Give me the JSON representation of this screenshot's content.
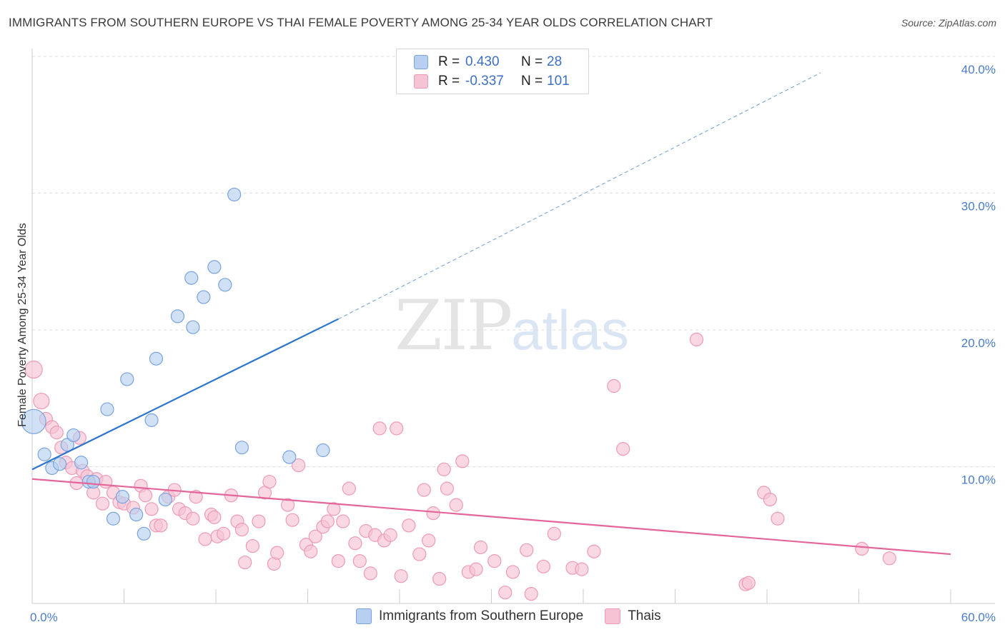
{
  "title": "IMMIGRANTS FROM SOUTHERN EUROPE VS THAI FEMALE POVERTY AMONG 25-34 YEAR OLDS CORRELATION CHART",
  "source": "Source: ZipAtlas.com",
  "watermark": {
    "zip": "ZIP",
    "atlas": "atlas"
  },
  "legend": {
    "series1": {
      "r_label": "R =",
      "r_value": "0.430",
      "n_label": "N =",
      "n_value": "28"
    },
    "series2": {
      "r_label": "R =",
      "r_value": "-0.337",
      "n_label": "N =",
      "n_value": "101"
    }
  },
  "bottom_legend": {
    "series1": "Immigrants from Southern Europe",
    "series2": "Thais"
  },
  "colors": {
    "blue_fill": "#b7cff0",
    "blue_stroke": "#7aa3df",
    "blue_line": "#2b74d0",
    "pink_fill": "#f6c3d4",
    "pink_stroke": "#ee9ab6",
    "pink_line": "#e4659a",
    "tick": "#4a7cc9",
    "grid": "#dddddd"
  },
  "chart_data": {
    "type": "scatter",
    "ylabel": "Female Poverty Among 25-34 Year Olds",
    "xlim": [
      0,
      60
    ],
    "ylim": [
      0,
      40
    ],
    "x_tick_labels": [
      "0.0%",
      "60.0%"
    ],
    "y_ticks": [
      10,
      20,
      30,
      40
    ],
    "y_tick_labels": [
      "10.0%",
      "20.0%",
      "30.0%",
      "40.0%"
    ],
    "grid": true,
    "series": [
      {
        "name": "Immigrants from Southern Europe",
        "color": "blue",
        "points": [
          [
            0.1,
            13.3
          ],
          [
            0.8,
            10.9
          ],
          [
            1.3,
            9.9
          ],
          [
            1.8,
            10.2
          ],
          [
            2.3,
            11.6
          ],
          [
            2.7,
            12.3
          ],
          [
            3.2,
            10.3
          ],
          [
            3.7,
            8.9
          ],
          [
            4.0,
            8.9
          ],
          [
            4.9,
            14.2
          ],
          [
            5.3,
            6.2
          ],
          [
            5.9,
            7.8
          ],
          [
            6.2,
            16.4
          ],
          [
            6.8,
            6.5
          ],
          [
            7.3,
            5.1
          ],
          [
            7.8,
            13.4
          ],
          [
            8.1,
            17.9
          ],
          [
            8.7,
            7.6
          ],
          [
            9.5,
            21.0
          ],
          [
            10.4,
            23.8
          ],
          [
            10.5,
            20.2
          ],
          [
            11.2,
            22.4
          ],
          [
            11.9,
            24.6
          ],
          [
            12.6,
            23.3
          ],
          [
            13.2,
            29.9
          ],
          [
            13.7,
            11.4
          ],
          [
            16.8,
            10.7
          ],
          [
            19.0,
            11.2
          ]
        ],
        "trend": {
          "x0": 0,
          "y0": 9.8,
          "x1": 20,
          "y1": 20.8,
          "dashed_to": {
            "x": 51.5,
            "y": 38.8
          }
        }
      },
      {
        "name": "Thais",
        "color": "pink",
        "points": [
          [
            0.1,
            17.1
          ],
          [
            0.6,
            14.8
          ],
          [
            0.9,
            13.5
          ],
          [
            1.3,
            12.9
          ],
          [
            1.6,
            12.5
          ],
          [
            1.9,
            11.4
          ],
          [
            2.2,
            10.3
          ],
          [
            2.6,
            9.9
          ],
          [
            2.9,
            8.8
          ],
          [
            3.1,
            12.1
          ],
          [
            3.3,
            9.7
          ],
          [
            3.6,
            9.3
          ],
          [
            4.0,
            8.1
          ],
          [
            4.2,
            9.1
          ],
          [
            4.6,
            7.3
          ],
          [
            4.8,
            8.9
          ],
          [
            5.3,
            8.1
          ],
          [
            5.7,
            7.4
          ],
          [
            6.0,
            7.3
          ],
          [
            6.6,
            7.0
          ],
          [
            7.1,
            8.6
          ],
          [
            7.4,
            7.9
          ],
          [
            7.8,
            6.9
          ],
          [
            8.1,
            5.7
          ],
          [
            8.4,
            5.7
          ],
          [
            8.9,
            7.8
          ],
          [
            9.3,
            8.3
          ],
          [
            9.6,
            6.9
          ],
          [
            10.0,
            6.6
          ],
          [
            10.5,
            6.2
          ],
          [
            10.7,
            7.8
          ],
          [
            11.3,
            4.7
          ],
          [
            11.7,
            6.5
          ],
          [
            11.9,
            6.3
          ],
          [
            12.1,
            4.9
          ],
          [
            12.5,
            5.1
          ],
          [
            13.0,
            7.9
          ],
          [
            13.4,
            6.0
          ],
          [
            13.7,
            5.4
          ],
          [
            13.9,
            3.0
          ],
          [
            14.4,
            4.2
          ],
          [
            14.8,
            6.0
          ],
          [
            15.2,
            8.1
          ],
          [
            15.5,
            8.9
          ],
          [
            15.8,
            2.9
          ],
          [
            16.0,
            3.7
          ],
          [
            16.7,
            7.2
          ],
          [
            17.0,
            6.1
          ],
          [
            17.4,
            10.1
          ],
          [
            17.9,
            4.3
          ],
          [
            18.2,
            3.8
          ],
          [
            18.5,
            4.9
          ],
          [
            19.0,
            5.6
          ],
          [
            19.3,
            6.0
          ],
          [
            19.7,
            6.9
          ],
          [
            20.0,
            3.1
          ],
          [
            20.3,
            6.0
          ],
          [
            20.7,
            8.4
          ],
          [
            21.1,
            4.4
          ],
          [
            21.4,
            3.1
          ],
          [
            21.8,
            5.3
          ],
          [
            22.1,
            2.2
          ],
          [
            22.4,
            5.0
          ],
          [
            22.7,
            12.8
          ],
          [
            23.0,
            4.6
          ],
          [
            23.4,
            5.0
          ],
          [
            23.8,
            12.8
          ],
          [
            24.1,
            2.0
          ],
          [
            24.6,
            5.7
          ],
          [
            25.3,
            3.6
          ],
          [
            25.6,
            8.3
          ],
          [
            25.9,
            4.6
          ],
          [
            26.2,
            6.6
          ],
          [
            26.6,
            1.8
          ],
          [
            26.9,
            9.8
          ],
          [
            27.1,
            8.4
          ],
          [
            27.7,
            7.2
          ],
          [
            28.1,
            10.4
          ],
          [
            28.5,
            2.3
          ],
          [
            29.0,
            2.5
          ],
          [
            29.3,
            4.1
          ],
          [
            30.2,
            3.1
          ],
          [
            30.9,
            0.8
          ],
          [
            31.4,
            2.3
          ],
          [
            32.3,
            3.9
          ],
          [
            32.6,
            0.7
          ],
          [
            33.4,
            2.7
          ],
          [
            34.1,
            5.1
          ],
          [
            35.3,
            2.6
          ],
          [
            35.9,
            2.5
          ],
          [
            36.7,
            3.8
          ],
          [
            38.0,
            15.9
          ],
          [
            38.6,
            11.3
          ],
          [
            43.4,
            19.3
          ],
          [
            46.6,
            1.4
          ],
          [
            46.8,
            1.5
          ],
          [
            47.8,
            8.1
          ],
          [
            48.2,
            7.6
          ],
          [
            48.7,
            6.2
          ],
          [
            54.2,
            4.0
          ],
          [
            56.0,
            3.3
          ]
        ],
        "trend": {
          "x0": 0,
          "y0": 9.1,
          "x1": 60,
          "y1": 3.6
        }
      }
    ]
  }
}
